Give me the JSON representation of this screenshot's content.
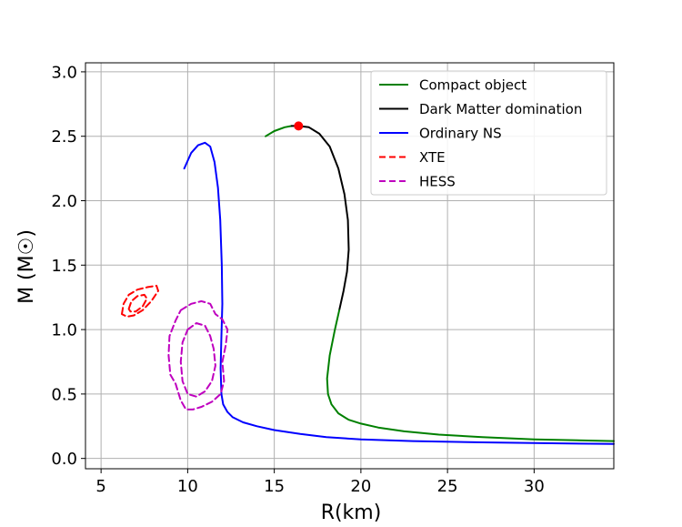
{
  "chart_data": {
    "type": "line",
    "xlabel": "R(km)",
    "ylabel": "M (M☉)",
    "xlim": [
      4.1,
      34.6
    ],
    "ylim": [
      -0.08,
      3.07
    ],
    "xticks": [
      5,
      10,
      15,
      20,
      25,
      30
    ],
    "yticks": [
      0.0,
      0.5,
      1.0,
      1.5,
      2.0,
      2.5,
      3.0
    ],
    "grid": true,
    "legend_position": "top-right",
    "colors": {
      "compact": "#008000",
      "dark_matter": "#000000",
      "ordinary": "#0000ff",
      "xte": "#ff0000",
      "hess": "#bf00bf",
      "marker": "#ff0000"
    },
    "legend": [
      {
        "label": "Compact object",
        "color": "#008000",
        "style": "solid"
      },
      {
        "label": "Dark Matter domination",
        "color": "#000000",
        "style": "solid"
      },
      {
        "label": "Ordinary NS",
        "color": "#0000ff",
        "style": "solid"
      },
      {
        "label": "XTE",
        "color": "#ff0000",
        "style": "dashed"
      },
      {
        "label": "HESS",
        "color": "#bf00bf",
        "style": "dashed"
      }
    ],
    "series": [
      {
        "name": "Ordinary NS",
        "color": "#0000ff",
        "style": "solid",
        "points": [
          [
            9.8,
            2.25
          ],
          [
            10.2,
            2.37
          ],
          [
            10.6,
            2.43
          ],
          [
            11.0,
            2.45
          ],
          [
            11.3,
            2.42
          ],
          [
            11.55,
            2.3
          ],
          [
            11.75,
            2.1
          ],
          [
            11.88,
            1.85
          ],
          [
            11.97,
            1.5
          ],
          [
            12.0,
            1.2
          ],
          [
            11.95,
            0.95
          ],
          [
            11.9,
            0.7
          ],
          [
            11.95,
            0.5
          ],
          [
            12.05,
            0.42
          ],
          [
            12.3,
            0.36
          ],
          [
            12.6,
            0.32
          ],
          [
            13.2,
            0.28
          ],
          [
            14.0,
            0.25
          ],
          [
            15.0,
            0.22
          ],
          [
            16.5,
            0.19
          ],
          [
            18.0,
            0.165
          ],
          [
            20.0,
            0.148
          ],
          [
            23.0,
            0.135
          ],
          [
            27.0,
            0.125
          ],
          [
            31.0,
            0.118
          ],
          [
            34.6,
            0.112
          ]
        ]
      },
      {
        "name": "Compact object",
        "color": "#008000",
        "style": "solid",
        "points": [
          [
            14.5,
            2.5
          ],
          [
            15.0,
            2.54
          ],
          [
            15.6,
            2.57
          ],
          [
            16.0,
            2.58
          ]
        ]
      },
      {
        "name": "Dark Matter domination",
        "color": "#000000",
        "style": "solid",
        "points": [
          [
            16.0,
            2.58
          ],
          [
            16.4,
            2.58
          ],
          [
            17.0,
            2.57
          ],
          [
            17.6,
            2.52
          ],
          [
            18.2,
            2.42
          ],
          [
            18.7,
            2.25
          ],
          [
            19.05,
            2.05
          ],
          [
            19.25,
            1.85
          ],
          [
            19.3,
            1.62
          ],
          [
            19.2,
            1.45
          ],
          [
            19.0,
            1.3
          ],
          [
            18.75,
            1.15
          ]
        ]
      },
      {
        "name": "Compact object",
        "color": "#008000",
        "style": "solid",
        "points": [
          [
            18.75,
            1.15
          ],
          [
            18.5,
            1.0
          ],
          [
            18.2,
            0.8
          ],
          [
            18.05,
            0.62
          ],
          [
            18.1,
            0.5
          ],
          [
            18.3,
            0.42
          ],
          [
            18.7,
            0.35
          ],
          [
            19.3,
            0.3
          ],
          [
            20.0,
            0.27
          ],
          [
            21.0,
            0.24
          ],
          [
            22.5,
            0.21
          ],
          [
            24.5,
            0.185
          ],
          [
            27.0,
            0.165
          ],
          [
            30.0,
            0.148
          ],
          [
            34.6,
            0.135
          ]
        ]
      },
      {
        "name": "XTE",
        "color": "#ff0000",
        "style": "dashed",
        "points": [
          [
            6.2,
            1.12
          ],
          [
            6.3,
            1.2
          ],
          [
            6.6,
            1.27
          ],
          [
            7.1,
            1.31
          ],
          [
            7.7,
            1.33
          ],
          [
            8.2,
            1.34
          ],
          [
            8.3,
            1.3
          ],
          [
            7.9,
            1.22
          ],
          [
            7.4,
            1.15
          ],
          [
            6.9,
            1.11
          ],
          [
            6.5,
            1.1
          ],
          [
            6.2,
            1.12
          ]
        ]
      },
      {
        "name": "XTE",
        "color": "#ff0000",
        "style": "dashed",
        "points": [
          [
            6.6,
            1.16
          ],
          [
            6.75,
            1.22
          ],
          [
            7.1,
            1.26
          ],
          [
            7.5,
            1.27
          ],
          [
            7.65,
            1.24
          ],
          [
            7.4,
            1.18
          ],
          [
            7.0,
            1.14
          ],
          [
            6.7,
            1.14
          ],
          [
            6.6,
            1.16
          ]
        ]
      },
      {
        "name": "HESS",
        "color": "#bf00bf",
        "style": "dashed",
        "points": [
          [
            9.6,
            1.15
          ],
          [
            10.2,
            1.2
          ],
          [
            10.8,
            1.22
          ],
          [
            11.3,
            1.2
          ],
          [
            11.6,
            1.12
          ],
          [
            12.0,
            1.08
          ],
          [
            12.3,
            1.0
          ],
          [
            12.2,
            0.88
          ],
          [
            12.0,
            0.75
          ],
          [
            12.1,
            0.6
          ],
          [
            11.9,
            0.5
          ],
          [
            11.4,
            0.44
          ],
          [
            10.8,
            0.4
          ],
          [
            10.3,
            0.38
          ],
          [
            9.9,
            0.38
          ],
          [
            9.6,
            0.45
          ],
          [
            9.3,
            0.58
          ],
          [
            9.0,
            0.65
          ],
          [
            8.9,
            0.8
          ],
          [
            8.95,
            0.95
          ],
          [
            9.1,
            1.0
          ],
          [
            9.3,
            1.07
          ],
          [
            9.6,
            1.15
          ]
        ]
      },
      {
        "name": "HESS",
        "color": "#bf00bf",
        "style": "dashed",
        "points": [
          [
            10.0,
            1.0
          ],
          [
            10.5,
            1.05
          ],
          [
            11.0,
            1.03
          ],
          [
            11.3,
            0.95
          ],
          [
            11.5,
            0.85
          ],
          [
            11.6,
            0.72
          ],
          [
            11.4,
            0.6
          ],
          [
            11.0,
            0.52
          ],
          [
            10.5,
            0.48
          ],
          [
            10.0,
            0.5
          ],
          [
            9.7,
            0.6
          ],
          [
            9.6,
            0.75
          ],
          [
            9.7,
            0.9
          ],
          [
            10.0,
            1.0
          ]
        ]
      }
    ],
    "markers": [
      {
        "x": 16.4,
        "y": 2.58,
        "color": "#ff0000"
      }
    ]
  }
}
